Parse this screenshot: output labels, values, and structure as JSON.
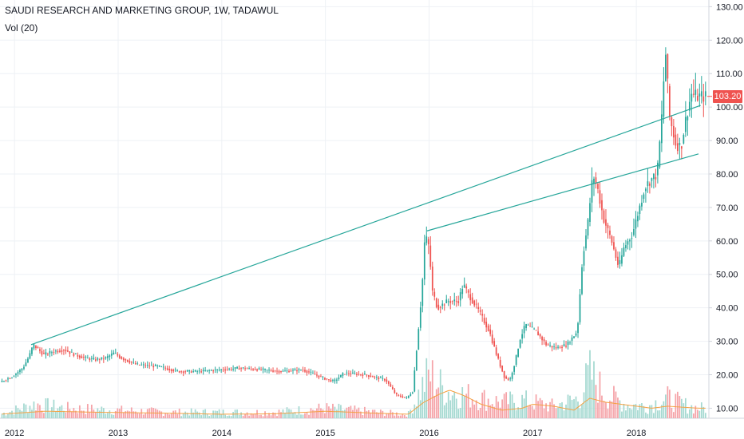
{
  "header": {
    "title": "SAUDI RESEARCH AND MARKETING GROUP, 1W, TADAWUL",
    "indicator": "Vol (20)"
  },
  "last_price": {
    "label": "103.20",
    "value": 103.2,
    "color": "#ef5350"
  },
  "colors": {
    "up": "#26a69a",
    "down": "#ef5350",
    "vol_up": "#a5d9d1",
    "vol_down": "#f5a3a8",
    "vol_ma": "#f5a142",
    "trendline": "#26a69a",
    "grid": "#eef1f5",
    "axis": "#d1d4dc"
  },
  "chart_data": {
    "type": "candlestick",
    "title": "SAUDI RESEARCH AND MARKETING GROUP, 1W, TADAWUL",
    "x_ticks": [
      {
        "label": "2012",
        "t": 2012.0
      },
      {
        "label": "2013",
        "t": 2013.0
      },
      {
        "label": "2014",
        "t": 2014.0
      },
      {
        "label": "2015",
        "t": 2015.0
      },
      {
        "label": "2016",
        "t": 2016.0
      },
      {
        "label": "2017",
        "t": 2017.0
      },
      {
        "label": "2018",
        "t": 2018.0
      }
    ],
    "y_ticks": [
      "10.00",
      "20.00",
      "30.00",
      "40.00",
      "50.00",
      "60.00",
      "70.00",
      "80.00",
      "90.00",
      "100.00",
      "110.00",
      "120.00",
      "130.00"
    ],
    "ylim": [
      7,
      132
    ],
    "xlim": [
      2011.86,
      2018.7
    ],
    "price_path": [
      [
        2011.86,
        17.5
      ],
      [
        2012.0,
        19.5
      ],
      [
        2012.1,
        22
      ],
      [
        2012.16,
        25.5
      ],
      [
        2012.2,
        29
      ],
      [
        2012.3,
        26
      ],
      [
        2012.4,
        27
      ],
      [
        2012.5,
        27.5
      ],
      [
        2012.6,
        26
      ],
      [
        2012.7,
        25
      ],
      [
        2012.8,
        24.5
      ],
      [
        2012.9,
        25
      ],
      [
        2012.98,
        26.5
      ],
      [
        2013.05,
        25
      ],
      [
        2013.2,
        23
      ],
      [
        2013.4,
        22.5
      ],
      [
        2013.6,
        21
      ],
      [
        2013.8,
        21
      ],
      [
        2014.0,
        21.5
      ],
      [
        2014.2,
        22
      ],
      [
        2014.4,
        21.5
      ],
      [
        2014.6,
        21
      ],
      [
        2014.8,
        21.5
      ],
      [
        2015.0,
        19
      ],
      [
        2015.1,
        18
      ],
      [
        2015.2,
        20.5
      ],
      [
        2015.4,
        20
      ],
      [
        2015.6,
        18.5
      ],
      [
        2015.7,
        14
      ],
      [
        2015.8,
        13
      ],
      [
        2015.86,
        15
      ],
      [
        2015.9,
        28
      ],
      [
        2015.95,
        45
      ],
      [
        2015.98,
        62
      ],
      [
        2016.02,
        58
      ],
      [
        2016.05,
        45
      ],
      [
        2016.1,
        40
      ],
      [
        2016.2,
        42
      ],
      [
        2016.3,
        42
      ],
      [
        2016.35,
        47
      ],
      [
        2016.4,
        44
      ],
      [
        2016.5,
        39
      ],
      [
        2016.6,
        33
      ],
      [
        2016.68,
        25
      ],
      [
        2016.75,
        19
      ],
      [
        2016.8,
        18.5
      ],
      [
        2016.85,
        24
      ],
      [
        2016.9,
        31
      ],
      [
        2016.95,
        35
      ],
      [
        2017.05,
        33
      ],
      [
        2017.15,
        29
      ],
      [
        2017.25,
        28
      ],
      [
        2017.35,
        29
      ],
      [
        2017.45,
        33
      ],
      [
        2017.5,
        55
      ],
      [
        2017.55,
        65
      ],
      [
        2017.6,
        80
      ],
      [
        2017.65,
        75
      ],
      [
        2017.7,
        67
      ],
      [
        2017.78,
        60
      ],
      [
        2017.85,
        52
      ],
      [
        2017.9,
        58
      ],
      [
        2017.98,
        62
      ],
      [
        2018.05,
        70
      ],
      [
        2018.1,
        76
      ],
      [
        2018.15,
        78
      ],
      [
        2018.22,
        80
      ],
      [
        2018.26,
        95
      ],
      [
        2018.3,
        117
      ],
      [
        2018.34,
        97
      ],
      [
        2018.4,
        89
      ],
      [
        2018.45,
        88
      ],
      [
        2018.5,
        97
      ],
      [
        2018.55,
        104
      ],
      [
        2018.6,
        103.2
      ]
    ],
    "trendlines": [
      {
        "from": [
          2012.16,
          29
        ],
        "to": [
          2018.62,
          100.5
        ]
      },
      {
        "from": [
          2015.98,
          63
        ],
        "to": [
          2018.6,
          86
        ]
      }
    ],
    "volume_path": [
      [
        2011.86,
        2
      ],
      [
        2012.2,
        7
      ],
      [
        2012.5,
        5
      ],
      [
        2013.0,
        4
      ],
      [
        2013.5,
        3
      ],
      [
        2014.0,
        3
      ],
      [
        2014.5,
        3
      ],
      [
        2015.0,
        5
      ],
      [
        2015.5,
        3
      ],
      [
        2015.8,
        2
      ],
      [
        2015.9,
        12
      ],
      [
        2016.0,
        22
      ],
      [
        2016.15,
        14
      ],
      [
        2016.3,
        12
      ],
      [
        2016.5,
        10
      ],
      [
        2016.7,
        8
      ],
      [
        2016.9,
        9
      ],
      [
        2017.2,
        6
      ],
      [
        2017.45,
        10
      ],
      [
        2017.55,
        22
      ],
      [
        2017.7,
        12
      ],
      [
        2017.9,
        7
      ],
      [
        2018.1,
        6
      ],
      [
        2018.3,
        10
      ],
      [
        2018.5,
        6
      ],
      [
        2018.6,
        5
      ]
    ],
    "volume_ma_path": [
      [
        2011.86,
        2
      ],
      [
        2012.3,
        3.5
      ],
      [
        2012.8,
        3
      ],
      [
        2013.5,
        2.5
      ],
      [
        2014.0,
        2
      ],
      [
        2014.5,
        2.2
      ],
      [
        2015.0,
        3.5
      ],
      [
        2015.5,
        2.5
      ],
      [
        2015.8,
        2
      ],
      [
        2015.95,
        8
      ],
      [
        2016.1,
        12
      ],
      [
        2016.2,
        14
      ],
      [
        2016.35,
        11
      ],
      [
        2016.5,
        7
      ],
      [
        2016.7,
        4
      ],
      [
        2016.9,
        5
      ],
      [
        2017.0,
        7
      ],
      [
        2017.2,
        6
      ],
      [
        2017.4,
        4
      ],
      [
        2017.55,
        10
      ],
      [
        2017.7,
        8
      ],
      [
        2017.85,
        7
      ],
      [
        2018.0,
        6
      ],
      [
        2018.15,
        5
      ],
      [
        2018.3,
        6
      ],
      [
        2018.6,
        5
      ]
    ]
  }
}
